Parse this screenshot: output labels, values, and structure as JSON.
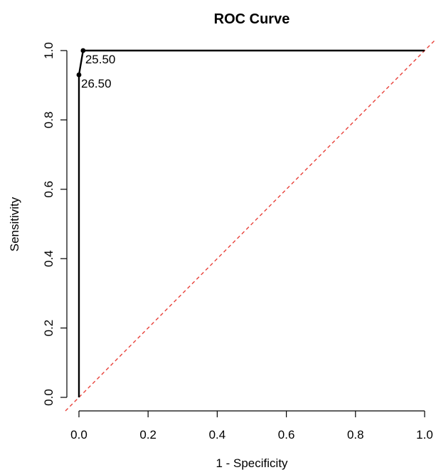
{
  "chart_data": {
    "type": "line",
    "title": "ROC Curve",
    "xlabel": "1 - Specificity",
    "ylabel": "Sensitivity",
    "xlim": [
      0,
      1
    ],
    "ylim": [
      0,
      1
    ],
    "x_ticks": [
      "0.0",
      "0.2",
      "0.4",
      "0.6",
      "0.8",
      "1.0"
    ],
    "y_ticks": [
      "0.0",
      "0.2",
      "0.4",
      "0.6",
      "0.8",
      "1.0"
    ],
    "grid": false,
    "legend": "none",
    "series": [
      {
        "x": [
          0.0,
          0.0,
          0.012,
          1.0
        ],
        "y": [
          0.0,
          0.93,
          1.0,
          1.0
        ],
        "color": "#000000"
      }
    ],
    "reference_line": {
      "x": [
        0,
        1
      ],
      "y": [
        0,
        1
      ],
      "color": "#e8413a",
      "style": "dashed"
    },
    "annotations": [
      {
        "label": "25.50",
        "x": 0.012,
        "y": 1.0
      },
      {
        "label": "26.50",
        "x": 0.0,
        "y": 0.93
      }
    ]
  }
}
